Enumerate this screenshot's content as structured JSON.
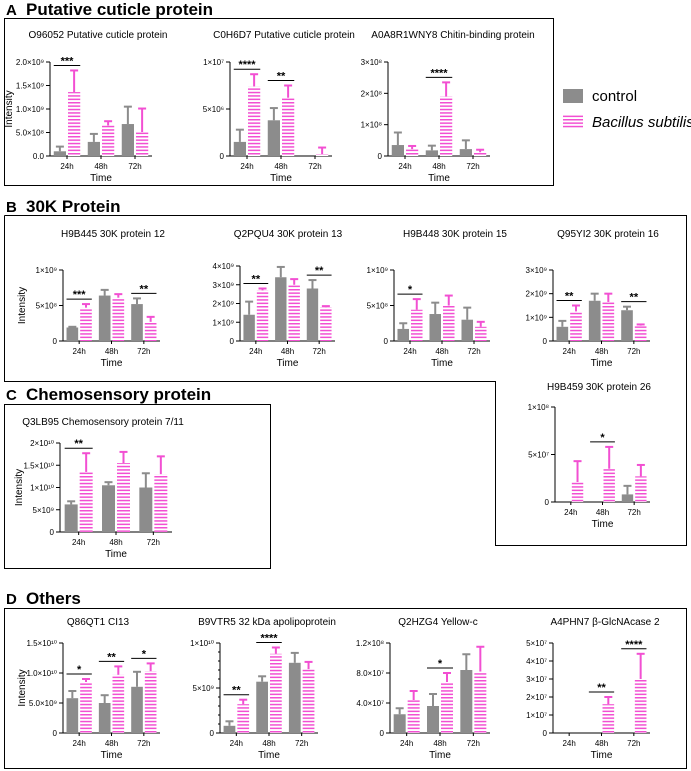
{
  "sections": [
    {
      "letter": "A",
      "name": "Putative cuticle protein"
    },
    {
      "letter": "B",
      "name": "30K Protein"
    },
    {
      "letter": "C",
      "name": "Chemosensory protein"
    },
    {
      "letter": "D",
      "name": "Others"
    }
  ],
  "legend": {
    "control": {
      "label": "control",
      "color": "#8c8c8c"
    },
    "treatment": {
      "label": "Bacillus subtilis",
      "color": "#f24fd2"
    }
  },
  "xlabel": "Time",
  "ylabel": "Intensity",
  "categories": [
    "24h",
    "48h",
    "72h"
  ],
  "chart_data": [
    {
      "id": "A1",
      "type": "bar",
      "title": "O96052 Putative cuticle protein",
      "ylim": [
        0,
        2000000000
      ],
      "yticks": [
        0,
        500000000,
        1000000000,
        1500000000,
        2000000000
      ],
      "ytick_labels": [
        "0.0",
        "5.0×10⁸",
        "1.0×10⁹",
        "1.5×10⁹",
        "2.0×10⁹"
      ],
      "categories": [
        "24h",
        "48h",
        "72h"
      ],
      "series": [
        {
          "name": "control",
          "values": [
            100000000,
            300000000,
            680000000
          ],
          "errors": [
            100000000,
            170000000,
            370000000
          ]
        },
        {
          "name": "Bacillus subtilis",
          "values": [
            1360000000,
            650000000,
            510000000
          ],
          "errors": [
            460000000,
            90000000,
            500000000
          ]
        }
      ],
      "significance": [
        {
          "category": "24h",
          "label": "***"
        }
      ],
      "ylabel": "Intensity",
      "xlabel": "Time"
    },
    {
      "id": "A2",
      "type": "bar",
      "title": "C0H6D7 Putative cuticle protein",
      "ylim": [
        0,
        10000000
      ],
      "yticks": [
        0,
        5000000,
        10000000
      ],
      "ytick_labels": [
        "0",
        "5×10⁶",
        "1×10⁷"
      ],
      "categories": [
        "24h",
        "48h",
        "72h"
      ],
      "series": [
        {
          "name": "control",
          "values": [
            1500000,
            3800000,
            0
          ],
          "errors": [
            1300000,
            1300000,
            0
          ]
        },
        {
          "name": "Bacillus subtilis",
          "values": [
            7400000,
            6200000,
            200000
          ],
          "errors": [
            1300000,
            1300000,
            700000
          ]
        }
      ],
      "significance": [
        {
          "category": "24h",
          "label": "****"
        },
        {
          "category": "48h",
          "label": "**"
        }
      ],
      "xlabel": "Time"
    },
    {
      "id": "A3",
      "type": "bar",
      "title": "A0A8R1WNY8 Chitin-binding protein",
      "ylim": [
        0,
        300000000
      ],
      "yticks": [
        0,
        100000000,
        200000000,
        300000000
      ],
      "ytick_labels": [
        "0",
        "1×10⁸",
        "2×10⁸",
        "3×10⁸"
      ],
      "categories": [
        "24h",
        "48h",
        "72h"
      ],
      "series": [
        {
          "name": "control",
          "values": [
            35000000,
            18000000,
            22000000
          ],
          "errors": [
            40000000,
            15000000,
            28000000
          ]
        },
        {
          "name": "Bacillus subtilis",
          "values": [
            22000000,
            190000000,
            12000000
          ],
          "errors": [
            10000000,
            45000000,
            8000000
          ]
        }
      ],
      "significance": [
        {
          "category": "48h",
          "label": "****"
        }
      ],
      "xlabel": "Time"
    },
    {
      "id": "B1",
      "type": "bar",
      "title": "H9B445  30K protein 12",
      "ylim": [
        0,
        1000000000
      ],
      "yticks": [
        0,
        500000000,
        1000000000
      ],
      "ytick_labels": [
        "0",
        "5×10⁸",
        "1×10⁹"
      ],
      "categories": [
        "24h",
        "48h",
        "72h"
      ],
      "series": [
        {
          "name": "control",
          "values": [
            190000000,
            640000000,
            520000000
          ],
          "errors": [
            10000000,
            80000000,
            80000000
          ]
        },
        {
          "name": "Bacillus subtilis",
          "values": [
            470000000,
            610000000,
            270000000
          ],
          "errors": [
            50000000,
            50000000,
            70000000
          ]
        }
      ],
      "significance": [
        {
          "category": "24h",
          "label": "***"
        },
        {
          "category": "72h",
          "label": "**"
        }
      ],
      "ylabel": "Intensity",
      "xlabel": "Time"
    },
    {
      "id": "B2",
      "type": "bar",
      "title": "Q2PQU4 30K protein 13",
      "ylim": [
        0,
        4000000000
      ],
      "yticks": [
        0,
        1000000000,
        2000000000,
        3000000000,
        4000000000
      ],
      "ytick_labels": [
        "0",
        "1×10⁹",
        "2×10⁹",
        "3×10⁹",
        "4×10⁹"
      ],
      "categories": [
        "24h",
        "48h",
        "72h"
      ],
      "series": [
        {
          "name": "control",
          "values": [
            1400000000,
            3400000000,
            2800000000
          ],
          "errors": [
            700000000,
            550000000,
            450000000
          ]
        },
        {
          "name": "Bacillus subtilis",
          "values": [
            2700000000,
            3000000000,
            1800000000
          ],
          "errors": [
            100000000,
            300000000,
            60000000
          ]
        }
      ],
      "significance": [
        {
          "category": "24h",
          "label": "**"
        },
        {
          "category": "72h",
          "label": "**"
        }
      ],
      "xlabel": "Time"
    },
    {
      "id": "B3",
      "type": "bar",
      "title": "H9B448 30K protein 15",
      "ylim": [
        0,
        1000000000
      ],
      "yticks": [
        0,
        500000000,
        1000000000
      ],
      "ytick_labels": [
        "0",
        "5×10⁸",
        "1×10⁹"
      ],
      "categories": [
        "24h",
        "48h",
        "72h"
      ],
      "series": [
        {
          "name": "control",
          "values": [
            170000000,
            380000000,
            300000000
          ],
          "errors": [
            80000000,
            160000000,
            170000000
          ]
        },
        {
          "name": "Bacillus subtilis",
          "values": [
            440000000,
            500000000,
            200000000
          ],
          "errors": [
            150000000,
            140000000,
            70000000
          ]
        }
      ],
      "significance": [
        {
          "category": "24h",
          "label": "*"
        }
      ],
      "xlabel": "Time"
    },
    {
      "id": "B4",
      "type": "bar",
      "title": "Q95YI2 30K protein 16",
      "ylim": [
        0,
        3000000000
      ],
      "yticks": [
        0,
        1000000000,
        2000000000,
        3000000000
      ],
      "ytick_labels": [
        "0",
        "1×10⁹",
        "2×10⁹",
        "3×10⁹"
      ],
      "categories": [
        "24h",
        "48h",
        "72h"
      ],
      "series": [
        {
          "name": "control",
          "values": [
            600000000,
            1700000000,
            1300000000
          ],
          "errors": [
            250000000,
            300000000,
            150000000
          ]
        },
        {
          "name": "Bacillus subtilis",
          "values": [
            1250000000,
            1650000000,
            650000000
          ],
          "errors": [
            250000000,
            350000000,
            50000000
          ]
        }
      ],
      "significance": [
        {
          "category": "24h",
          "label": "**"
        },
        {
          "category": "72h",
          "label": "**"
        }
      ],
      "xlabel": "Time"
    },
    {
      "id": "B5",
      "type": "bar",
      "title": "H9B459 30K protein 26",
      "ylim": [
        0,
        100000000
      ],
      "yticks": [
        0,
        50000000,
        100000000
      ],
      "ytick_labels": [
        "0",
        "5×10⁷",
        "1×10⁸"
      ],
      "categories": [
        "24h",
        "48h",
        "72h"
      ],
      "series": [
        {
          "name": "control",
          "values": [
            0,
            0,
            8000000
          ],
          "errors": [
            0,
            0,
            9000000
          ]
        },
        {
          "name": "Bacillus subtilis",
          "values": [
            21000000,
            35000000,
            27000000
          ],
          "errors": [
            22000000,
            23000000,
            12000000
          ]
        }
      ],
      "significance": [
        {
          "category": "48h",
          "label": "*"
        }
      ],
      "xlabel": "Time"
    },
    {
      "id": "C1",
      "type": "bar",
      "title": "Q3LB95 Chemosensory protein 7/11",
      "ylim": [
        0,
        20000000000
      ],
      "yticks": [
        0,
        5000000000,
        10000000000,
        15000000000,
        20000000000
      ],
      "ytick_labels": [
        "0",
        "5×10⁹",
        "1×10¹⁰",
        "1.5×10¹⁰",
        "2×10¹⁰"
      ],
      "categories": [
        "24h",
        "48h",
        "72h"
      ],
      "series": [
        {
          "name": "control",
          "values": [
            6200000000,
            10500000000,
            10000000000
          ],
          "errors": [
            700000000,
            700000000,
            3200000000
          ]
        },
        {
          "name": "Bacillus subtilis",
          "values": [
            13500000000,
            15500000000,
            13000000000
          ],
          "errors": [
            4200000000,
            2500000000,
            4000000000
          ]
        }
      ],
      "significance": [
        {
          "category": "24h",
          "label": "**"
        }
      ],
      "ylabel": "Intensity",
      "xlabel": "Time"
    },
    {
      "id": "D1",
      "type": "bar",
      "title": "Q86QT1 CI13",
      "ylim": [
        0,
        15000000000
      ],
      "yticks": [
        0,
        5000000000,
        10000000000,
        15000000000
      ],
      "ytick_labels": [
        "0",
        "5.0×10⁹",
        "1.0×10¹⁰",
        "1.5×10¹⁰"
      ],
      "categories": [
        "24h",
        "48h",
        "72h"
      ],
      "series": [
        {
          "name": "control",
          "values": [
            5800000000,
            5000000000,
            7700000000
          ],
          "errors": [
            1200000000,
            1300000000,
            2500000000
          ]
        },
        {
          "name": "Bacillus subtilis",
          "values": [
            8500000000,
            9700000000,
            10300000000
          ],
          "errors": [
            500000000,
            1400000000,
            1300000000
          ]
        }
      ],
      "significance": [
        {
          "category": "24h",
          "label": "*"
        },
        {
          "category": "48h",
          "label": "**"
        },
        {
          "category": "72h",
          "label": "*"
        }
      ],
      "ylabel": "Intensity",
      "xlabel": "Time"
    },
    {
      "id": "D2",
      "type": "bar",
      "title": "B9VTR5  32 kDa apolipoprotein",
      "ylim": [
        0,
        10000000000
      ],
      "yticks": [
        0,
        1000000000,
        2000000000,
        3000000000,
        4000000000,
        5000000000,
        6000000000,
        7000000000,
        8000000000,
        9000000000,
        10000000000
      ],
      "ytick_labels": [
        "0",
        "",
        "",
        "",
        "",
        "5×10⁹",
        "",
        "",
        "",
        "",
        "1×10¹⁰"
      ],
      "categories": [
        "24h",
        "48h",
        "72h"
      ],
      "series": [
        {
          "name": "control",
          "values": [
            800000000,
            5700000000,
            7800000000
          ],
          "errors": [
            500000000,
            600000000,
            1100000000
          ]
        },
        {
          "name": "Bacillus subtilis",
          "values": [
            3200000000,
            8800000000,
            7100000000
          ],
          "errors": [
            500000000,
            700000000,
            800000000
          ]
        }
      ],
      "significance": [
        {
          "category": "24h",
          "label": "**"
        },
        {
          "category": "48h",
          "label": "****"
        }
      ],
      "xlabel": "Time"
    },
    {
      "id": "D3",
      "type": "bar",
      "title": "Q2HZG4 Yellow-c",
      "ylim": [
        0,
        120000000
      ],
      "yticks": [
        0,
        40000000,
        80000000,
        120000000
      ],
      "ytick_labels": [
        "0",
        "4.0×10⁷",
        "8.0×10⁷",
        "1.2×10⁸"
      ],
      "categories": [
        "24h",
        "48h",
        "72h"
      ],
      "series": [
        {
          "name": "control",
          "values": [
            25000000,
            36000000,
            84000000
          ],
          "errors": [
            8000000,
            16000000,
            21000000
          ]
        },
        {
          "name": "Bacillus subtilis",
          "values": [
            44000000,
            68000000,
            82000000
          ],
          "errors": [
            12000000,
            12000000,
            33000000
          ]
        }
      ],
      "significance": [
        {
          "category": "48h",
          "label": "*"
        }
      ],
      "xlabel": "Time"
    },
    {
      "id": "D4",
      "type": "bar",
      "title": "A4PHN7 β-GlcNAcase 2",
      "ylim": [
        0,
        50000000
      ],
      "yticks": [
        0,
        10000000,
        20000000,
        30000000,
        40000000,
        50000000
      ],
      "ytick_labels": [
        "0",
        "1×10⁷",
        "2×10⁷",
        "3×10⁷",
        "4×10⁷",
        "5×10⁷"
      ],
      "categories": [
        "24h",
        "48h",
        "72h"
      ],
      "series": [
        {
          "name": "control",
          "values": [
            0,
            0,
            0
          ],
          "errors": [
            0,
            0,
            0
          ]
        },
        {
          "name": "Bacillus subtilis",
          "values": [
            0,
            16000000,
            30000000
          ],
          "errors": [
            0,
            4000000,
            14000000
          ]
        }
      ],
      "significance": [
        {
          "category": "48h",
          "label": "**"
        },
        {
          "category": "72h",
          "label": "****"
        }
      ],
      "xlabel": "Time"
    }
  ]
}
